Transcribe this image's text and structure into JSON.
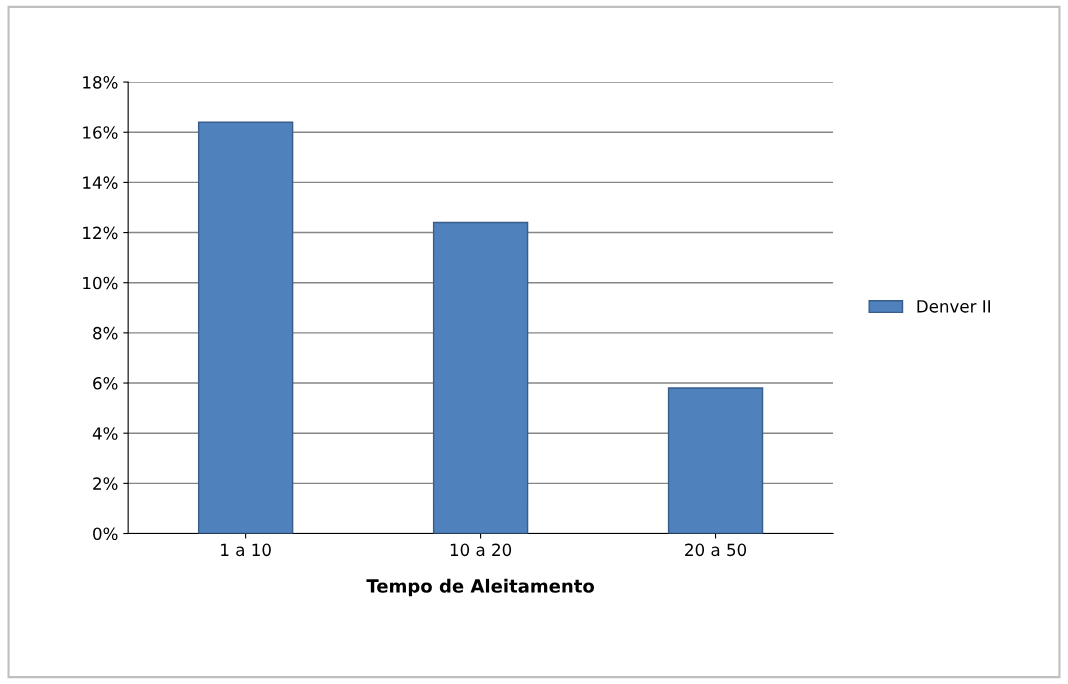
{
  "chart_data": {
    "type": "bar",
    "xlabel": "Tempo de Aleitamento",
    "categories": [
      "1 a 10",
      "10 a 20",
      "20 a 50"
    ],
    "series": [
      {
        "name": "Denver II",
        "color": "#4f81bd",
        "values": [
          0.164,
          0.124,
          0.058
        ]
      }
    ],
    "ylim": [
      0,
      0.18
    ],
    "yticks": [
      {
        "value": 0,
        "label": "0%"
      },
      {
        "value": 0.02,
        "label": "2%"
      },
      {
        "value": 0.04,
        "label": "4%"
      },
      {
        "value": 0.06,
        "label": "6%"
      },
      {
        "value": 0.08,
        "label": "8%"
      },
      {
        "value": 0.1,
        "label": "10%"
      },
      {
        "value": 0.12,
        "label": "12%"
      },
      {
        "value": 0.14,
        "label": "14%"
      },
      {
        "value": 0.16,
        "label": "16%"
      },
      {
        "value": 0.18,
        "label": "18%"
      }
    ],
    "grid": "y",
    "legend": "right"
  }
}
